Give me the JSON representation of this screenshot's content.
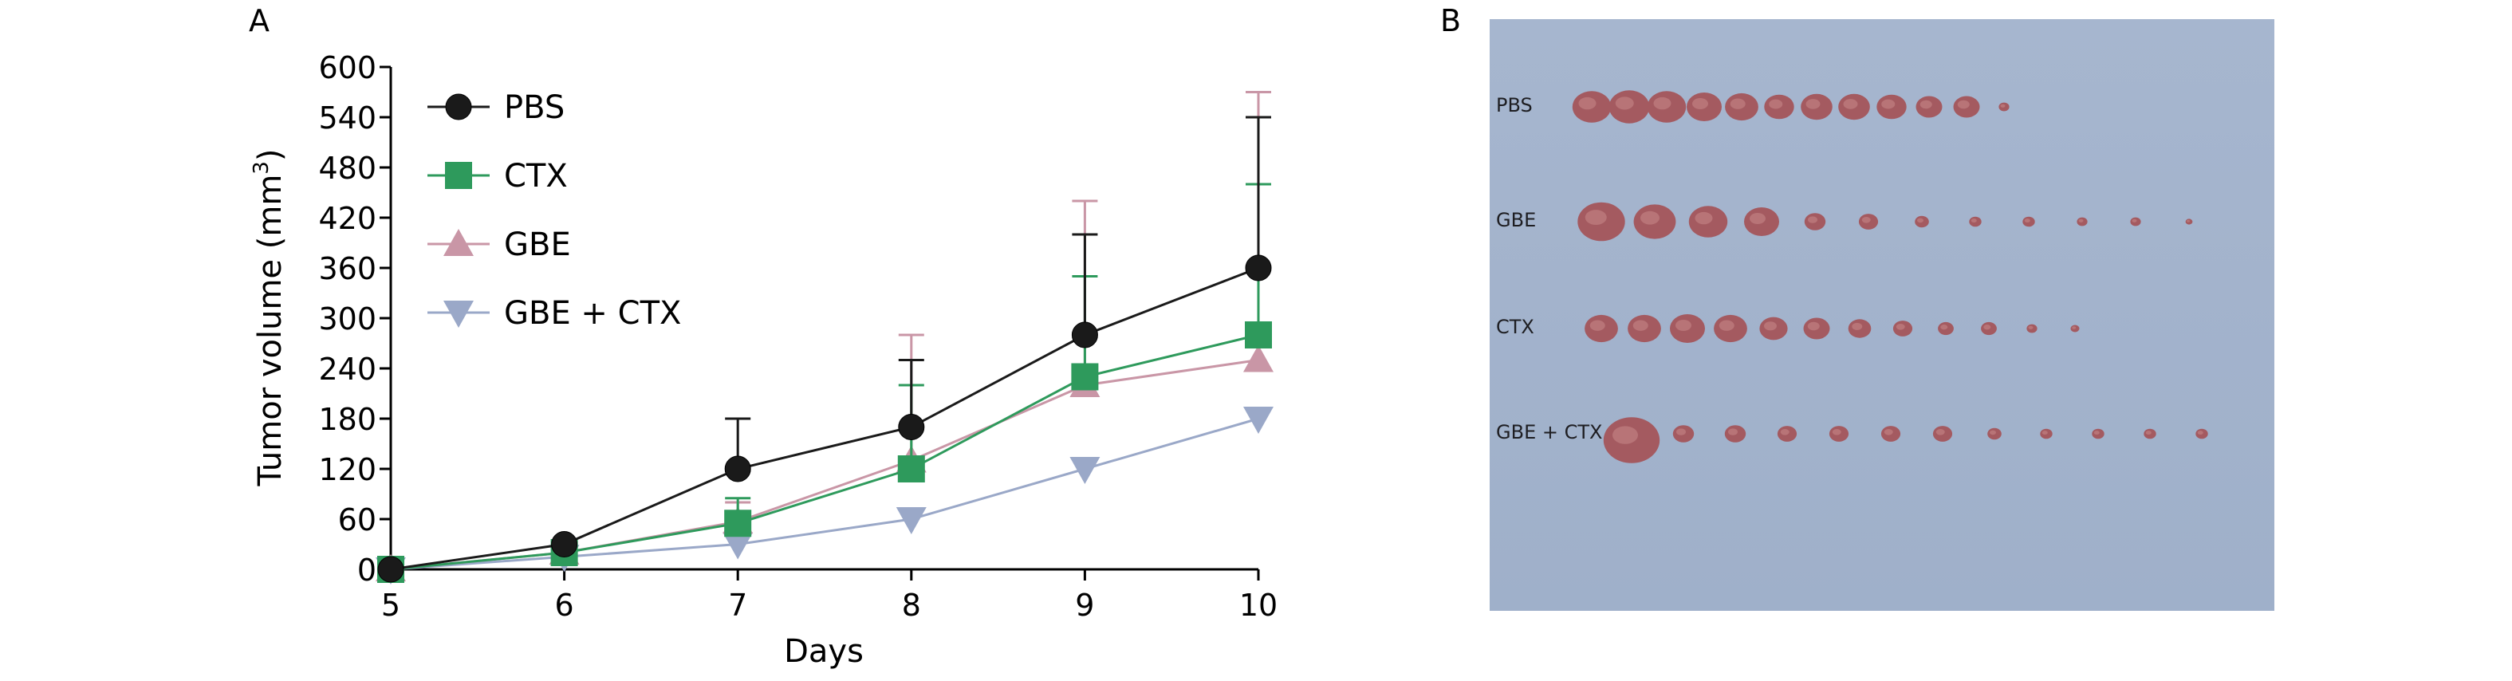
{
  "panels": {
    "a_label": "A",
    "b_label": "B"
  },
  "chart_data": {
    "type": "line",
    "xlabel": "Days",
    "ylabel": "Tumor volume (mm",
    "ylabel_sup": "3",
    "ylabel_close": ")",
    "x": [
      5,
      6,
      7,
      8,
      9,
      10
    ],
    "xlim": [
      5,
      10
    ],
    "ylim": [
      0,
      600
    ],
    "yticks": [
      0,
      60,
      120,
      180,
      240,
      300,
      360,
      420,
      480,
      540,
      600
    ],
    "grid": false,
    "legend_position": "top-left",
    "series": [
      {
        "name": "PBS",
        "color": "#1a1a1a",
        "marker": "circle",
        "values": [
          0,
          30,
          120,
          170,
          280,
          360
        ],
        "error_upper": [
          0,
          0,
          180,
          250,
          400,
          540
        ]
      },
      {
        "name": "CTX",
        "color": "#2e9a5c",
        "marker": "square",
        "values": [
          0,
          20,
          55,
          120,
          230,
          280
        ],
        "error_upper": [
          0,
          0,
          85,
          220,
          350,
          460
        ]
      },
      {
        "name": "GBE",
        "color": "#c996a6",
        "marker": "triangle-up",
        "values": [
          0,
          20,
          57,
          130,
          220,
          250
        ],
        "error_upper": [
          0,
          0,
          80,
          280,
          440,
          570
        ]
      },
      {
        "name": "GBE + CTX",
        "color": "#9aa8c8",
        "marker": "triangle-down",
        "values": [
          0,
          15,
          30,
          60,
          120,
          180
        ],
        "error_upper": [
          0,
          0,
          0,
          0,
          0,
          0
        ]
      }
    ]
  },
  "photo": {
    "rows": [
      {
        "label": "PBS",
        "tumor_count": 12
      },
      {
        "label": "GBE",
        "tumor_count": 12
      },
      {
        "label": "CTX",
        "tumor_count": 12
      },
      {
        "label": "GBE + CTX",
        "tumor_count": 12
      }
    ]
  }
}
